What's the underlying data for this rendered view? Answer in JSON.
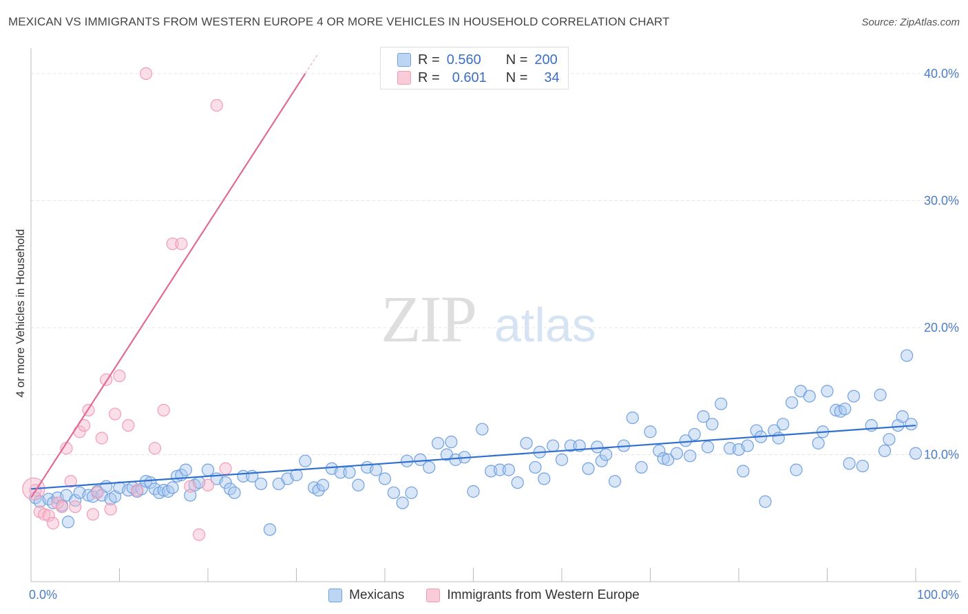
{
  "title": "MEXICAN VS IMMIGRANTS FROM WESTERN EUROPE 4 OR MORE VEHICLES IN HOUSEHOLD CORRELATION CHART",
  "source": "Source: ZipAtlas.com",
  "watermark": {
    "zip": "ZIP",
    "atlas": "atlas"
  },
  "legend_top": [
    {
      "r_label": "R =",
      "r_value": "0.560",
      "n_label": "N =",
      "n_value": "200",
      "color": "#a9c8f0"
    },
    {
      "r_label": "R =",
      "r_value": "0.601",
      "n_label": "N =",
      "n_value": "34",
      "color": "#f7b9cc"
    }
  ],
  "legend_bottom": [
    {
      "label": "Mexicans",
      "color": "#a9c8f0"
    },
    {
      "label": "Immigrants from Western Europe",
      "color": "#f7b9cc"
    }
  ],
  "chart_data": {
    "type": "scatter",
    "title": "MEXICAN VS IMMIGRANTS FROM WESTERN EUROPE 4 OR MORE VEHICLES IN HOUSEHOLD CORRELATION CHART",
    "xlabel": "",
    "ylabel": "4 or more Vehicles in Household",
    "xlim": [
      0,
      100
    ],
    "ylim": [
      0,
      42
    ],
    "x_tick_labels": [
      "0.0%",
      "100.0%"
    ],
    "y_ticks": [
      10,
      20,
      30,
      40
    ],
    "y_tick_labels": [
      "10.0%",
      "20.0%",
      "30.0%",
      "40.0%"
    ],
    "grid": true,
    "legend_placement": "top-center",
    "series": [
      {
        "name": "Mexicans",
        "color": "#6fa0e0",
        "trend": {
          "x": [
            0,
            100
          ],
          "y": [
            7.3,
            12.3
          ],
          "color": "#2f6fd0"
        },
        "points": [
          [
            0.5,
            6.6
          ],
          [
            1,
            6.3
          ],
          [
            2,
            6.5
          ],
          [
            2.5,
            6.2
          ],
          [
            3,
            6.6
          ],
          [
            3.5,
            6.0
          ],
          [
            4,
            6.8
          ],
          [
            4.2,
            4.7
          ],
          [
            5,
            6.4
          ],
          [
            5.5,
            7.0
          ],
          [
            6.5,
            6.8
          ],
          [
            7,
            6.7
          ],
          [
            7.5,
            7.1
          ],
          [
            8,
            6.8
          ],
          [
            8.5,
            7.5
          ],
          [
            9,
            6.5
          ],
          [
            9.5,
            6.7
          ],
          [
            10,
            7.4
          ],
          [
            11,
            7.2
          ],
          [
            11.5,
            7.4
          ],
          [
            12,
            7.1
          ],
          [
            12.5,
            7.3
          ],
          [
            13,
            7.9
          ],
          [
            13.5,
            7.8
          ],
          [
            14,
            7.3
          ],
          [
            14.5,
            7.0
          ],
          [
            15,
            7.2
          ],
          [
            15.5,
            7.1
          ],
          [
            16,
            7.4
          ],
          [
            16.5,
            8.3
          ],
          [
            17,
            8.4
          ],
          [
            17.5,
            8.8
          ],
          [
            18,
            6.8
          ],
          [
            18.5,
            7.6
          ],
          [
            19,
            7.8
          ],
          [
            20,
            8.8
          ],
          [
            21,
            8.1
          ],
          [
            22,
            7.8
          ],
          [
            22.5,
            7.3
          ],
          [
            23,
            7.0
          ],
          [
            24,
            8.3
          ],
          [
            25,
            8.3
          ],
          [
            26,
            7.7
          ],
          [
            27,
            4.1
          ],
          [
            28,
            7.7
          ],
          [
            29,
            8.1
          ],
          [
            30,
            8.4
          ],
          [
            31,
            9.5
          ],
          [
            32,
            7.4
          ],
          [
            32.5,
            7.2
          ],
          [
            33,
            7.6
          ],
          [
            34,
            8.9
          ],
          [
            35,
            8.6
          ],
          [
            36,
            8.6
          ],
          [
            37,
            7.6
          ],
          [
            38,
            9.0
          ],
          [
            39,
            8.8
          ],
          [
            40,
            8.1
          ],
          [
            41,
            7.0
          ],
          [
            42,
            6.2
          ],
          [
            42.5,
            9.5
          ],
          [
            43,
            7.0
          ],
          [
            44,
            9.6
          ],
          [
            45,
            9.0
          ],
          [
            46,
            10.9
          ],
          [
            47,
            10.0
          ],
          [
            47.5,
            11.0
          ],
          [
            48,
            9.6
          ],
          [
            49,
            9.8
          ],
          [
            50,
            7.1
          ],
          [
            51,
            12.0
          ],
          [
            52,
            8.7
          ],
          [
            53,
            8.8
          ],
          [
            54,
            8.8
          ],
          [
            55,
            7.8
          ],
          [
            56,
            10.9
          ],
          [
            57,
            9.0
          ],
          [
            57.5,
            10.2
          ],
          [
            58,
            8.1
          ],
          [
            59,
            10.7
          ],
          [
            60,
            9.6
          ],
          [
            61,
            10.7
          ],
          [
            62,
            10.7
          ],
          [
            63,
            8.9
          ],
          [
            64,
            10.6
          ],
          [
            64.5,
            9.5
          ],
          [
            65,
            10.0
          ],
          [
            66,
            7.9
          ],
          [
            67,
            10.7
          ],
          [
            68,
            12.9
          ],
          [
            69,
            9.0
          ],
          [
            70,
            11.8
          ],
          [
            71,
            10.3
          ],
          [
            71.5,
            9.7
          ],
          [
            72,
            9.6
          ],
          [
            73,
            10.1
          ],
          [
            74,
            11.1
          ],
          [
            74.5,
            9.9
          ],
          [
            75,
            11.6
          ],
          [
            76,
            13.0
          ],
          [
            76.5,
            10.6
          ],
          [
            77,
            12.4
          ],
          [
            78,
            14.0
          ],
          [
            79,
            10.5
          ],
          [
            80,
            10.4
          ],
          [
            80.5,
            8.7
          ],
          [
            81,
            10.7
          ],
          [
            82,
            11.9
          ],
          [
            82.5,
            11.4
          ],
          [
            83,
            6.3
          ],
          [
            84,
            11.9
          ],
          [
            84.5,
            11.3
          ],
          [
            85,
            12.4
          ],
          [
            86,
            14.1
          ],
          [
            86.5,
            8.8
          ],
          [
            87,
            15.0
          ],
          [
            88,
            14.6
          ],
          [
            89,
            10.9
          ],
          [
            89.5,
            11.8
          ],
          [
            90,
            15.0
          ],
          [
            91,
            13.5
          ],
          [
            91.5,
            13.4
          ],
          [
            92,
            13.6
          ],
          [
            92.5,
            9.3
          ],
          [
            93,
            14.6
          ],
          [
            94,
            9.1
          ],
          [
            95,
            12.3
          ],
          [
            96,
            14.7
          ],
          [
            96.5,
            10.3
          ],
          [
            97,
            11.2
          ],
          [
            98,
            12.3
          ],
          [
            98.5,
            13.0
          ],
          [
            99,
            17.8
          ],
          [
            99.5,
            12.4
          ],
          [
            100,
            10.1
          ]
        ]
      },
      {
        "name": "Immigrants from Western Europe",
        "color": "#f29bb5",
        "trend": {
          "x": [
            0,
            31
          ],
          "y": [
            6.6,
            40.0
          ],
          "color": "#e06a92"
        },
        "points": [
          [
            0.5,
            7.2
          ],
          [
            1,
            5.5
          ],
          [
            1.5,
            5.3
          ],
          [
            2,
            5.2
          ],
          [
            2.5,
            4.6
          ],
          [
            3,
            6.2
          ],
          [
            3.5,
            5.9
          ],
          [
            4,
            10.5
          ],
          [
            4.5,
            7.9
          ],
          [
            5,
            5.9
          ],
          [
            5.5,
            11.8
          ],
          [
            6,
            12.3
          ],
          [
            6.5,
            13.5
          ],
          [
            7,
            5.3
          ],
          [
            7.5,
            7.0
          ],
          [
            8,
            11.3
          ],
          [
            8.5,
            15.9
          ],
          [
            9,
            5.7
          ],
          [
            9.5,
            13.2
          ],
          [
            10,
            16.2
          ],
          [
            11,
            12.3
          ],
          [
            12,
            7.2
          ],
          [
            13,
            40.0
          ],
          [
            14,
            10.5
          ],
          [
            15,
            13.5
          ],
          [
            16,
            26.6
          ],
          [
            17,
            26.6
          ],
          [
            18,
            7.5
          ],
          [
            19,
            3.7
          ],
          [
            20,
            7.6
          ],
          [
            21,
            37.5
          ],
          [
            22,
            8.9
          ]
        ]
      }
    ]
  },
  "ylabel_text": "4 or more Vehicles in Household"
}
